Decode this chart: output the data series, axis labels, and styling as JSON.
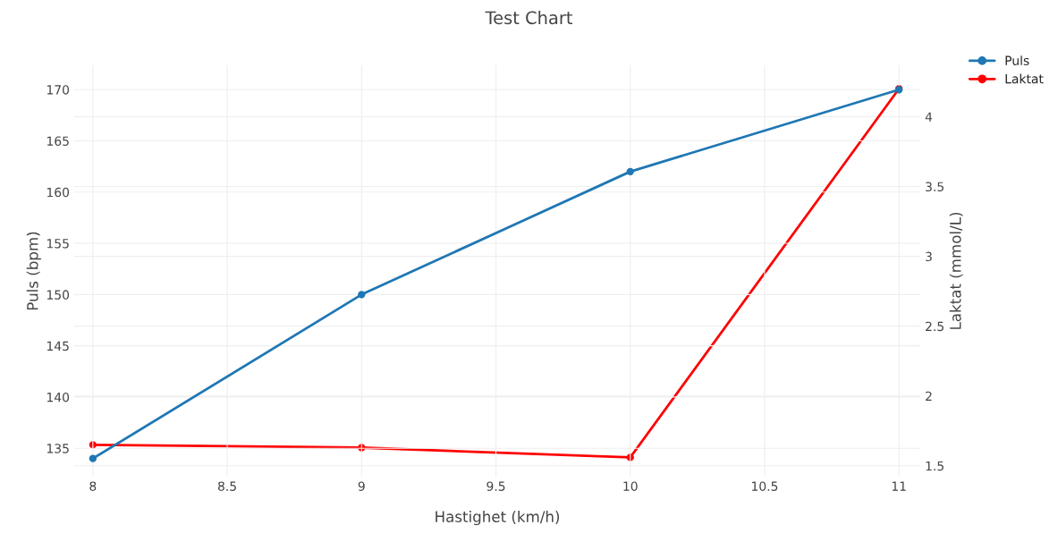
{
  "chart_data": {
    "type": "line",
    "title": "Test Chart",
    "xlabel": "Hastighet (km/h)",
    "ylabel": "Puls (bpm)",
    "y2label": "Laktat (mmol/L)",
    "x": [
      8,
      9,
      10,
      11
    ],
    "series": [
      {
        "name": "Puls",
        "color": "#1f77b4",
        "values": [
          134,
          150,
          162,
          170
        ]
      },
      {
        "name": "Laktat",
        "color": "#ff0000",
        "values": [
          1.65,
          1.63,
          1.56,
          4.2
        ],
        "axis": "y2"
      }
    ],
    "xlim": [
      7.93,
      11.08
    ],
    "xticks": [
      8,
      8.5,
      9,
      9.5,
      10,
      10.5,
      11
    ],
    "ylim": [
      132.2,
      172.4
    ],
    "yticks": [
      135,
      140,
      145,
      150,
      155,
      160,
      165,
      170
    ],
    "y2lim": [
      1.42,
      4.37
    ],
    "y2ticks": [
      1.5,
      2,
      2.5,
      3,
      3.5,
      4
    ],
    "grid": true,
    "legend": "top right",
    "marker": "circle",
    "line_style": "solid"
  }
}
